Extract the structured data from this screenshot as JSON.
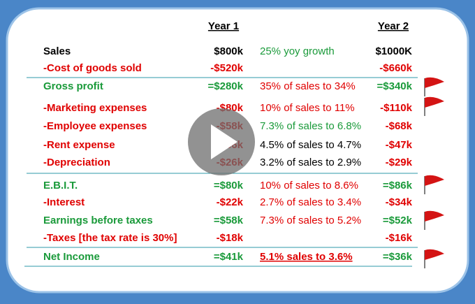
{
  "header": {
    "year1": "Year 1",
    "year2": "Year 2"
  },
  "rows": [
    {
      "label": "Sales",
      "year1": "$800k",
      "comment": "25% yoy growth",
      "year2": "$1000K"
    },
    {
      "label": "-Cost of goods sold",
      "year1": "-$520k",
      "year2": "-$660k"
    },
    {
      "label": "Gross profit",
      "year1": "=$280k",
      "comment": "35% of sales to 34%",
      "year2": "=$340k"
    },
    {
      "label": "-Marketing expenses",
      "year1": "-$80k",
      "comment": "10% of sales to 11%",
      "year2": "-$110k"
    },
    {
      "label": "-Employee expenses",
      "year1": "-$58k",
      "comment": "7.3% of sales to 6.8%",
      "year2": "-$68k"
    },
    {
      "label": "-Rent expense",
      "year1": "-$36k",
      "comment": "4.5% of sales to 4.7%",
      "year2": "-$47k"
    },
    {
      "label": "-Depreciation",
      "year1": "-$26k",
      "comment": "3.2% of sales to 2.9%",
      "year2": "-$29k"
    },
    {
      "label": "E.B.I.T.",
      "year1": "=$80k",
      "comment": "10% of sales to 8.6%",
      "year2": "=$86k"
    },
    {
      "label": "-Interest",
      "year1": "-$22k",
      "comment": "2.7% of sales to 3.4%",
      "year2": "-$34k"
    },
    {
      "label": "Earnings before taxes",
      "year1": "=$58k",
      "comment": "7.3% of sales to 5.2%",
      "year2": "=$52k"
    },
    {
      "label": "-Taxes [the tax rate is 30%]",
      "year1": "-$18k",
      "year2": "-$16k"
    },
    {
      "label": "Net Income",
      "year1": "=$41k",
      "comment": "5.1% sales to 3.6%",
      "year2": "=$36k"
    }
  ]
}
